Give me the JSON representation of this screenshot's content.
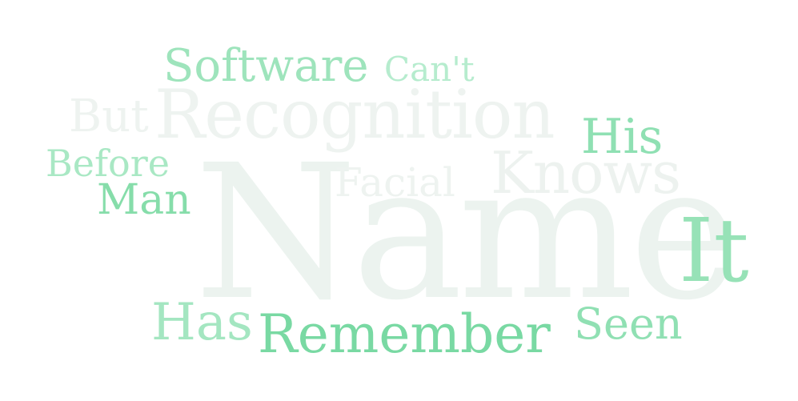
{
  "words": {
    "name": {
      "text": "Name",
      "color": "#ecf3ef"
    },
    "recognition": {
      "text": "Recognition",
      "color": "#eef3f0"
    },
    "knows": {
      "text": "Knows",
      "color": "#edf2ef"
    },
    "but": {
      "text": "But",
      "color": "#eef3f0"
    },
    "facial": {
      "text": "Facial",
      "color": "#eef3f0"
    },
    "software": {
      "text": "Software",
      "color": "#9ee4bc"
    },
    "cant": {
      "text": "Can't",
      "color": "#b6ecce"
    },
    "his": {
      "text": "His",
      "color": "#8fe0b3"
    },
    "before": {
      "text": "Before",
      "color": "#a9e8c4"
    },
    "man": {
      "text": "Man",
      "color": "#86ddaa"
    },
    "it": {
      "text": "It",
      "color": "#97e2b7"
    },
    "has": {
      "text": "Has",
      "color": "#a4e6c1"
    },
    "remember": {
      "text": "Remember",
      "color": "#79d9a3"
    },
    "seen": {
      "text": "Seen",
      "color": "#90e0b3"
    }
  }
}
